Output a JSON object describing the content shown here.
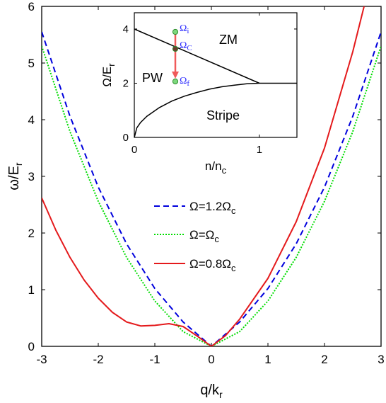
{
  "colors": {
    "series_1": "#0000dd",
    "series_2": "#00dd00",
    "series_3": "#e41a1c",
    "marker_fill": "#7dd87d",
    "marker_mid": "#6b3d2e",
    "arrow": "#f05a5a",
    "marker_text": "#2c2cff"
  },
  "chart_data": [
    {
      "type": "line",
      "xlabel": "q/k",
      "xlabel_sub": "r",
      "ylabel": "ω/E",
      "ylabel_sub": "r",
      "xlim": [
        -3,
        3
      ],
      "ylim": [
        0,
        6
      ],
      "xticks": [
        -3,
        -2,
        -1,
        0,
        1,
        2,
        3
      ],
      "xtick_labels": [
        "-3",
        "-2",
        "-1",
        "0",
        "1",
        "2",
        "3"
      ],
      "yticks": [
        0,
        1,
        2,
        3,
        4,
        5,
        6
      ],
      "ytick_labels": [
        "0",
        "1",
        "2",
        "3",
        "4",
        "5",
        "6"
      ],
      "grid": false,
      "legend_position": "center-right",
      "series": [
        {
          "name": "Ω=1.2Ω",
          "name_sub": "c",
          "style": "dashed",
          "x": [
            -3,
            -2.5,
            -2,
            -1.5,
            -1,
            -0.5,
            0,
            0.5,
            1,
            1.5,
            2,
            2.5,
            3
          ],
          "y": [
            5.55,
            4.06,
            2.81,
            1.81,
            1.02,
            0.43,
            0,
            0.43,
            1.02,
            1.81,
            2.81,
            4.06,
            5.55
          ]
        },
        {
          "name": "Ω=Ω",
          "name_sub": "c",
          "style": "dotted",
          "x": [
            -3,
            -2.5,
            -2,
            -1.5,
            -1,
            -0.5,
            0,
            0.5,
            1,
            1.5,
            2,
            2.5,
            3
          ],
          "y": [
            5.3,
            3.79,
            2.56,
            1.57,
            0.8,
            0.26,
            0,
            0.26,
            0.8,
            1.57,
            2.56,
            3.79,
            5.3
          ]
        },
        {
          "name": "Ω=0.8Ω",
          "name_sub": "c",
          "style": "solid",
          "x": [
            -3,
            -2.75,
            -2.5,
            -2.25,
            -2,
            -1.75,
            -1.5,
            -1.25,
            -1,
            -0.75,
            -0.5,
            -0.25,
            0,
            0.25,
            0.5,
            1,
            1.5,
            2,
            2.25,
            2.5,
            2.7
          ],
          "y": [
            2.62,
            2.05,
            1.57,
            1.17,
            0.85,
            0.6,
            0.43,
            0.36,
            0.37,
            0.4,
            0.35,
            0.18,
            0,
            0.19,
            0.48,
            1.2,
            2.2,
            3.5,
            4.35,
            5.2,
            6.0
          ]
        }
      ]
    },
    {
      "type": "line",
      "xlabel": "n/n",
      "xlabel_sub": "c",
      "ylabel": "Ω/E",
      "ylabel_sub": "r",
      "xlim": [
        0,
        1.3
      ],
      "ylim": [
        0,
        4.6
      ],
      "xticks": [
        0,
        1
      ],
      "xtick_labels": [
        "0",
        "1"
      ],
      "yticks": [
        0,
        2,
        4
      ],
      "ytick_labels": [
        "0",
        "2",
        "4"
      ],
      "grid": false,
      "series": [
        {
          "x": [
            0,
            1
          ],
          "y": [
            4.0,
            2.0
          ]
        },
        {
          "x": [
            0,
            0.02,
            0.05,
            0.1,
            0.2,
            0.3,
            0.4,
            0.5,
            0.6,
            0.7,
            0.8,
            0.9,
            1.0,
            1.1,
            1.2,
            1.3
          ],
          "y": [
            0,
            0.35,
            0.55,
            0.78,
            1.1,
            1.34,
            1.52,
            1.66,
            1.78,
            1.87,
            1.93,
            1.98,
            2.0,
            2.0,
            2.0,
            2.0
          ]
        }
      ],
      "regions": [
        "ZM",
        "PW",
        "Stripe"
      ],
      "markers": [
        {
          "label": "Ω",
          "sub": "i",
          "x": 0.35,
          "y": 4.4
        },
        {
          "label": "Ω",
          "sub": "C",
          "x": 0.35,
          "y": 3.3
        },
        {
          "label": "Ω",
          "sub": "f",
          "x": 0.35,
          "y": 2.2
        }
      ]
    }
  ]
}
